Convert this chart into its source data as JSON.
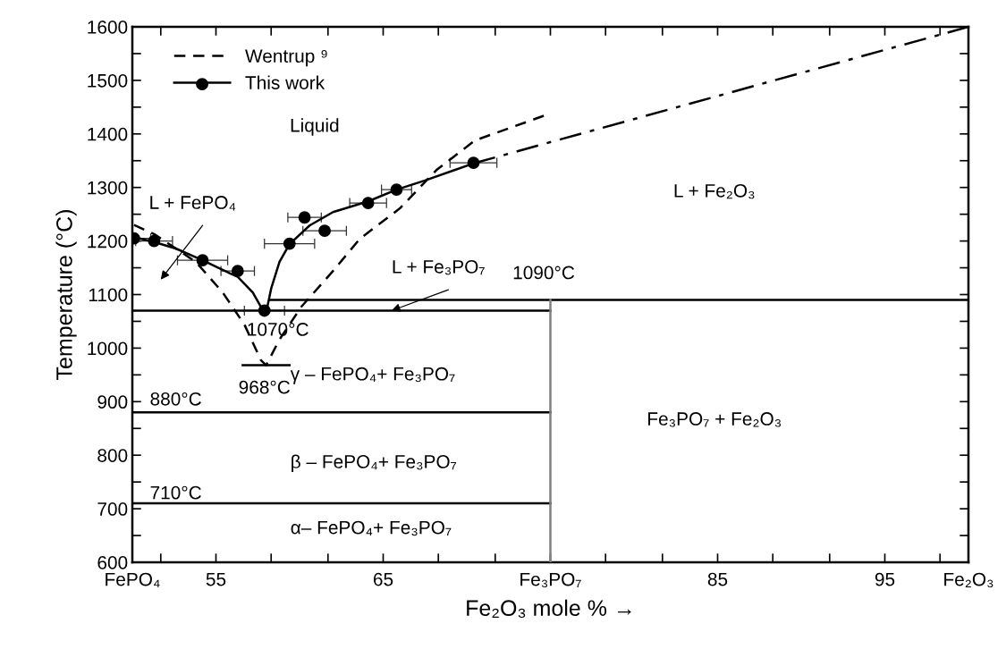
{
  "chart_data": {
    "type": "line",
    "xlabel": "Fe₂O₃ mole % →",
    "ylabel": "Temperature (°C)",
    "xlim": [
      50,
      100
    ],
    "ylim": [
      600,
      1600
    ],
    "xticks": [
      {
        "value": 50,
        "label": "FePO₄"
      },
      {
        "value": 51.7,
        "label": null
      },
      55,
      {
        "value": 58.3,
        "label": null
      },
      {
        "value": 61.7,
        "label": null
      },
      65,
      {
        "value": 68.3,
        "label": null
      },
      {
        "value": 71.7,
        "label": null
      },
      {
        "value": 75,
        "label": "Fe₃PO₇"
      },
      {
        "value": 78.3,
        "label": null
      },
      {
        "value": 81.7,
        "label": null
      },
      85,
      {
        "value": 88.3,
        "label": null
      },
      {
        "value": 91.7,
        "label": null
      },
      95,
      {
        "value": 98.3,
        "label": null
      },
      {
        "value": 100,
        "label": "Fe₂O₃"
      }
    ],
    "yticks": [
      600,
      {
        "value": 650,
        "label": null
      },
      700,
      {
        "value": 750,
        "label": null
      },
      800,
      {
        "value": 850,
        "label": null
      },
      900,
      {
        "value": 950,
        "label": null
      },
      1000,
      {
        "value": 1050,
        "label": null
      },
      1100,
      {
        "value": 1150,
        "label": null
      },
      1200,
      {
        "value": 1250,
        "label": null
      },
      1300,
      {
        "value": 1350,
        "label": null
      },
      1400,
      {
        "value": 1450,
        "label": null
      },
      1500,
      {
        "value": 1550,
        "label": null
      },
      1600
    ],
    "grid": false,
    "legend": "top left",
    "series": [
      {
        "name": "Wentrup ⁹",
        "color": "#000000",
        "line_style": "dashed",
        "marker": "none",
        "x": [
          50.1,
          51.3,
          53.8,
          55.4,
          56.7,
          57.7,
          58.0,
          58.8,
          60.1,
          62.0,
          63.6,
          66.0,
          68.2,
          70.5,
          74.8
        ],
        "values": [
          1230,
          1213,
          1161,
          1104,
          1044,
          977,
          968,
          1016,
          1077,
          1144,
          1204,
          1261,
          1333,
          1388,
          1436
        ]
      },
      {
        "name": "This work",
        "color": "#000000",
        "line_style": "solid",
        "marker": "none",
        "x": [
          50.0,
          51.3,
          52.6,
          54.2,
          55.4,
          56.3,
          57.2,
          57.8,
          58.0,
          58.3,
          58.8,
          59.4,
          60.6,
          62.0,
          64.1,
          65.8,
          67.5,
          70.4
        ],
        "values": [
          1208,
          1198,
          1186,
          1164,
          1146,
          1133,
          1104,
          1071,
          1066,
          1111,
          1161,
          1194,
          1229,
          1254,
          1274,
          1296,
          1313,
          1345
        ]
      },
      {
        "type": "scatter",
        "color": "#000000",
        "marker": "circle",
        "x": [
          50.1,
          51.3,
          54.2,
          56.3,
          57.9,
          59.4,
          60.3,
          61.5,
          64.1,
          65.8,
          70.4
        ],
        "values": [
          1205,
          1200,
          1164,
          1144,
          1070,
          1195,
          1244,
          1219,
          1271,
          1296,
          1346
        ],
        "xerrors": [
          1.0,
          1.1,
          1.5,
          1.0,
          1.2,
          1.5,
          1.0,
          1.3,
          1.1,
          0.9,
          1.4
        ]
      },
      {
        "type": "line",
        "color": "#000000",
        "line_style": "dashdot",
        "marker": "none",
        "x": [
          70.4,
          100
        ],
        "values": [
          1345,
          1600
        ]
      },
      {
        "type": "line",
        "color": "#000000",
        "line_style": "solid",
        "marker": "none",
        "x": [
          58.2,
          100
        ],
        "values": [
          1090,
          1090
        ]
      },
      {
        "type": "line",
        "color": "#000000",
        "line_style": "solid",
        "marker": "none",
        "x": [
          50,
          75
        ],
        "values": [
          1070,
          1070
        ]
      },
      {
        "type": "line",
        "color": "#000000",
        "line_style": "solid",
        "marker": "none",
        "x": [
          56.6,
          59.4
        ],
        "values": [
          968,
          968
        ]
      },
      {
        "type": "line",
        "color": "#000000",
        "line_style": "solid",
        "marker": "none",
        "x": [
          50,
          75
        ],
        "values": [
          880,
          880
        ]
      },
      {
        "type": "line",
        "color": "#000000",
        "line_style": "solid",
        "marker": "none",
        "x": [
          50,
          75
        ],
        "values": [
          710,
          710
        ]
      },
      {
        "type": "line",
        "color": "#808080",
        "line_style": "solid",
        "marker": "none",
        "x": [
          75,
          75
        ],
        "values": [
          600,
          1090
        ]
      }
    ],
    "annotations": [
      "Liquid",
      "L + FePO₄",
      {
        "text": "L + Fe₃PO₇",
        "x": 65.5,
        "y": 1070
      },
      "1090°C",
      "1070°C",
      "968°C",
      "880°C",
      "710°C",
      "γ – FePO₄+ Fe₃PO₇",
      "β – FePO₄+ Fe₃PO₇",
      "α– FePO₄+ Fe₃PO₇",
      "L + Fe₂O₃",
      "Fe₃PO₇ + Fe₂O₃"
    ]
  }
}
